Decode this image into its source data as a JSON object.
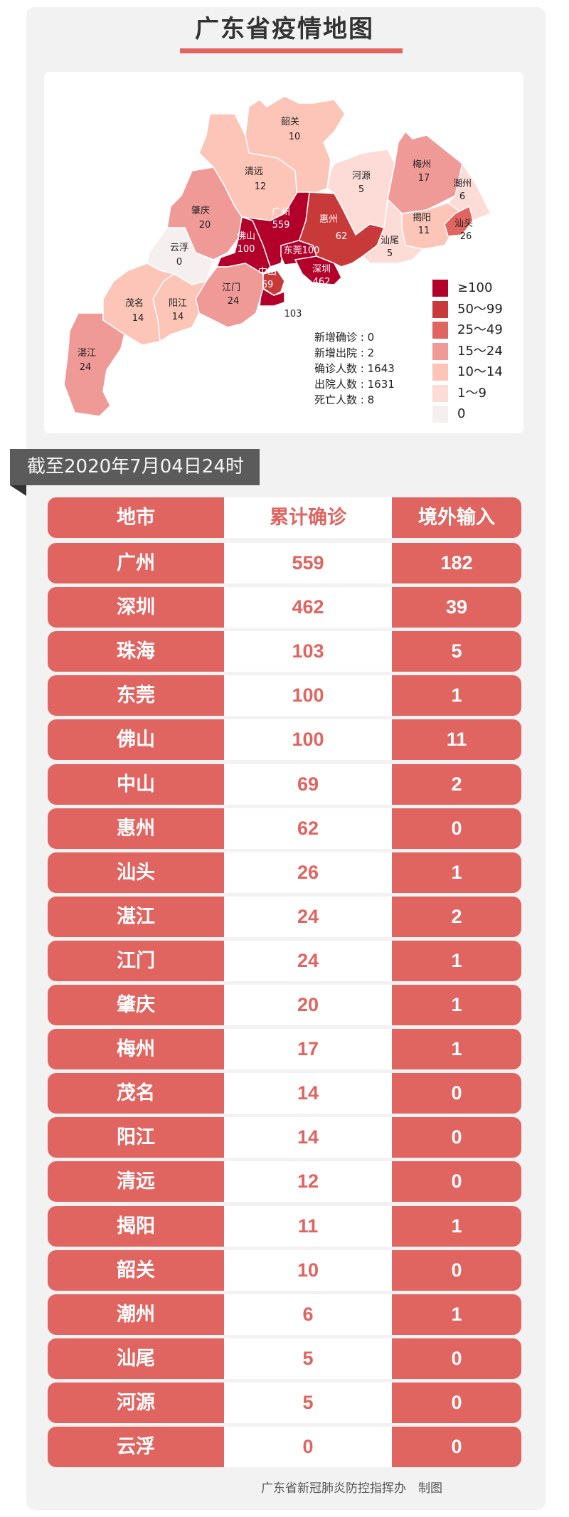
{
  "title": "广东省疫情地图",
  "colors": {
    "accent": "#e06460",
    "banner": "#5b5b5b"
  },
  "map": {
    "regions": [
      {
        "name": "韶关",
        "value": 10
      },
      {
        "name": "清远",
        "value": 12
      },
      {
        "name": "肇庆",
        "value": 20
      },
      {
        "name": "云浮",
        "value": 0
      },
      {
        "name": "河源",
        "value": 5
      },
      {
        "name": "梅州",
        "value": 17
      },
      {
        "name": "潮州",
        "value": 6
      },
      {
        "name": "揭阳",
        "value": 11
      },
      {
        "name": "汕头",
        "value": 26
      },
      {
        "name": "汕尾",
        "value": 5
      },
      {
        "name": "惠州",
        "value": 62
      },
      {
        "name": "广州",
        "value": 559
      },
      {
        "name": "佛山",
        "value": 100
      },
      {
        "name": "东莞",
        "value": 100
      },
      {
        "name": "深圳",
        "value": 462
      },
      {
        "name": "中山",
        "value": 69
      },
      {
        "name": "珠海",
        "value": 103
      },
      {
        "name": "江门",
        "value": 24
      },
      {
        "name": "阳江",
        "value": 14
      },
      {
        "name": "茂名",
        "value": 14
      },
      {
        "name": "湛江",
        "value": 24
      }
    ],
    "stats": [
      {
        "label": "新增确诊",
        "value": "0"
      },
      {
        "label": "新增出院",
        "value": "2"
      },
      {
        "label": "确诊人数",
        "value": "1643"
      },
      {
        "label": "出院人数",
        "value": "1631"
      },
      {
        "label": "死亡人数",
        "value": "8"
      }
    ],
    "legend": [
      {
        "label": "≥100",
        "color": "#b3002a"
      },
      {
        "label": "50～99",
        "color": "#c8393a"
      },
      {
        "label": "25～49",
        "color": "#e06460"
      },
      {
        "label": "15～24",
        "color": "#f09a98"
      },
      {
        "label": "10～14",
        "color": "#fcc5b7"
      },
      {
        "label": "1～9",
        "color": "#fddcd8"
      },
      {
        "label": "0",
        "color": "#f6efef"
      }
    ]
  },
  "date_banner": "截至2020年7月04日24时",
  "table": {
    "headers": [
      "地市",
      "累计确诊",
      "境外输入"
    ],
    "rows": [
      [
        "广州",
        "559",
        "182"
      ],
      [
        "深圳",
        "462",
        "39"
      ],
      [
        "珠海",
        "103",
        "5"
      ],
      [
        "东莞",
        "100",
        "1"
      ],
      [
        "佛山",
        "100",
        "11"
      ],
      [
        "中山",
        "69",
        "2"
      ],
      [
        "惠州",
        "62",
        "0"
      ],
      [
        "汕头",
        "26",
        "1"
      ],
      [
        "湛江",
        "24",
        "2"
      ],
      [
        "江门",
        "24",
        "1"
      ],
      [
        "肇庆",
        "20",
        "1"
      ],
      [
        "梅州",
        "17",
        "1"
      ],
      [
        "茂名",
        "14",
        "0"
      ],
      [
        "阳江",
        "14",
        "0"
      ],
      [
        "清远",
        "12",
        "0"
      ],
      [
        "揭阳",
        "11",
        "1"
      ],
      [
        "韶关",
        "10",
        "0"
      ],
      [
        "潮州",
        "6",
        "1"
      ],
      [
        "汕尾",
        "5",
        "0"
      ],
      [
        "河源",
        "5",
        "0"
      ],
      [
        "云浮",
        "0",
        "0"
      ]
    ]
  },
  "footer": "广东省新冠肺炎防控指挥办　制图"
}
